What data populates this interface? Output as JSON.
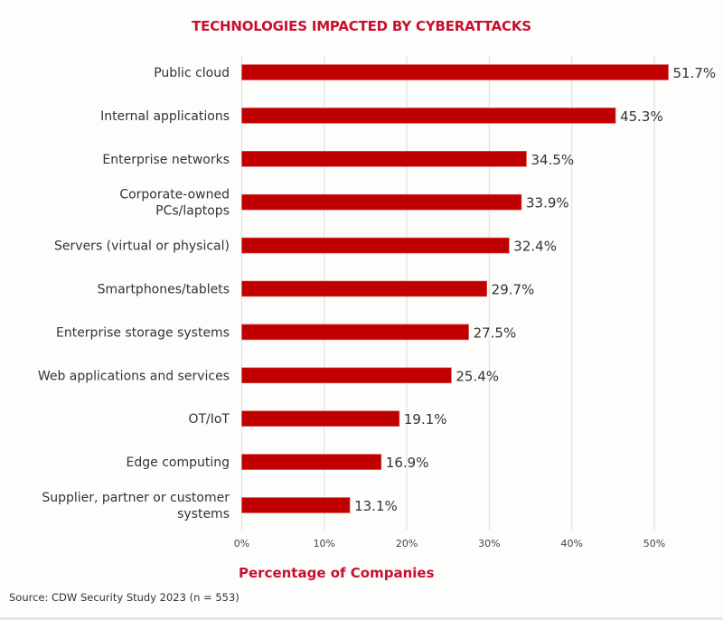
{
  "chart_data": {
    "type": "bar",
    "orientation": "horizontal",
    "title": "TECHNOLOGIES IMPACTED BY CYBERATTACKS",
    "xlabel": "Percentage of Companies",
    "ylabel": "",
    "categories": [
      "Public cloud",
      "Internal applications",
      "Enterprise networks",
      "Corporate-owned PCs/laptops",
      "Servers (virtual or physical)",
      "Smartphones/tablets",
      "Enterprise storage systems",
      "Web applications and services",
      "OT/IoT",
      "Edge computing",
      "Supplier, partner or customer systems"
    ],
    "category_lines": [
      [
        "Public cloud"
      ],
      [
        "Internal applications"
      ],
      [
        "Enterprise networks"
      ],
      [
        "Corporate-owned",
        "PCs/laptops"
      ],
      [
        "Servers (virtual or physical)"
      ],
      [
        "Smartphones/tablets"
      ],
      [
        "Enterprise storage systems"
      ],
      [
        "Web applications and services"
      ],
      [
        "OT/IoT"
      ],
      [
        "Edge computing"
      ],
      [
        "Supplier, partner or customer",
        "systems"
      ]
    ],
    "values": [
      51.7,
      45.3,
      34.5,
      33.9,
      32.4,
      29.7,
      27.5,
      25.4,
      19.1,
      16.9,
      13.1
    ],
    "data_labels": [
      "51.7%",
      "45.3%",
      "34.5%",
      "33.9%",
      "32.4%",
      "29.7%",
      "27.5%",
      "25.4%",
      "19.1%",
      "16.9%",
      "13.1%"
    ],
    "xlim": [
      0,
      55
    ],
    "xticks": [
      0,
      10,
      20,
      30,
      40,
      50
    ],
    "xtick_labels": [
      "0%",
      "10%",
      "20%",
      "30%",
      "40%",
      "50%"
    ],
    "grid": "vertical",
    "legend": "none",
    "colors": {
      "bar": "#c00000",
      "title": "#c8102e",
      "grid": "#e3e3e3",
      "text": "#333333"
    }
  },
  "source": "Source: CDW Security Study 2023 (n = 553)"
}
